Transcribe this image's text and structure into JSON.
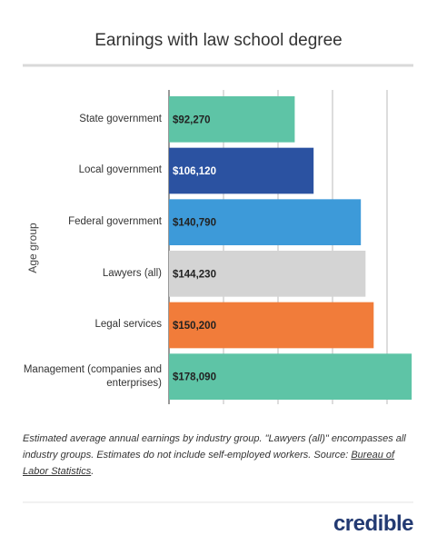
{
  "chart_data": {
    "type": "bar",
    "orientation": "horizontal",
    "title": "Earnings with law school degree",
    "y_label": "Age group",
    "categories": [
      "State government",
      "Local government",
      "Federal government",
      "Lawyers (all)",
      "Legal services",
      "Management (companies and enterprises)"
    ],
    "values": [
      92270,
      106120,
      140790,
      144230,
      150200,
      178090
    ],
    "value_labels": [
      "$92,270",
      "$106,120",
      "$140,790",
      "$144,230",
      "$150,200",
      "$178,090"
    ],
    "colors": [
      "#5ec4a6",
      "#2b52a1",
      "#3d9ad9",
      "#d4d4d4",
      "#f17c3a",
      "#5ec4a6"
    ],
    "label_colors": [
      "#222222",
      "#ffffff",
      "#222222",
      "#222222",
      "#222222",
      "#222222"
    ],
    "xlim": [
      0,
      180000
    ],
    "xticks": [
      0,
      40000,
      80000,
      120000,
      160000
    ],
    "grid": true
  },
  "footnote": {
    "text": "Estimated average annual earnings by industry group. \"Lawyers (all)\" encompasses all industry groups. Estimates do not include self-employed workers. Source: ",
    "link": "Bureau of Labor Statistics",
    "end": "."
  },
  "logo": "credible"
}
